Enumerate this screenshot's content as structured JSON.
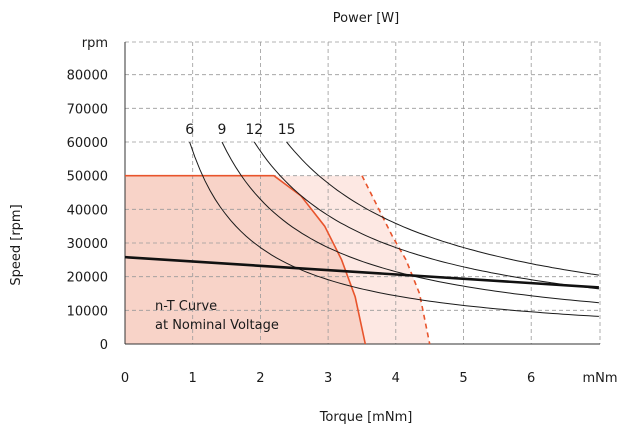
{
  "chart_data": {
    "type": "area",
    "title": "Power [W]",
    "xlabel": "Torque [mNm]",
    "ylabel": "Speed [rpm]",
    "x_unit_label": "mNm",
    "y_unit_label": "rpm",
    "xlim": [
      0,
      7
    ],
    "ylim": [
      0,
      90000
    ],
    "x_ticks": [
      "0",
      "1",
      "2",
      "3",
      "4",
      "5",
      "6"
    ],
    "y_ticks": [
      "0",
      "10000",
      "20000",
      "30000",
      "40000",
      "50000",
      "60000",
      "70000",
      "80000"
    ],
    "grid": true,
    "annotation": [
      "n-T Curve",
      "at Nominal Voltage"
    ],
    "colors": {
      "continuous_fill": "#f8d3c8",
      "intermittent_fill": "#fde8e3",
      "boundary": "#e8542c",
      "power_line": "#1a1a1a",
      "nt_line": "#111111",
      "grid": "#9a9a9a"
    },
    "regions": [
      {
        "role": "continuous",
        "points": [
          [
            0,
            50000
          ],
          [
            2.2,
            50000
          ],
          [
            2.6,
            44000
          ],
          [
            2.95,
            35000
          ],
          [
            3.2,
            25000
          ],
          [
            3.4,
            14000
          ],
          [
            3.55,
            0
          ]
        ]
      },
      {
        "role": "intermittent",
        "points": [
          [
            0,
            50000
          ],
          [
            3.5,
            50000
          ],
          [
            3.75,
            40000
          ],
          [
            3.95,
            32000
          ],
          [
            4.15,
            25000
          ],
          [
            4.35,
            15000
          ],
          [
            4.5,
            0
          ]
        ]
      }
    ],
    "power_curves": [
      {
        "name": "6",
        "watts": 6
      },
      {
        "name": "9",
        "watts": 9
      },
      {
        "name": "12",
        "watts": 12
      },
      {
        "name": "15",
        "watts": 15
      }
    ],
    "nt_line": {
      "x": [
        0,
        7
      ],
      "y": [
        25800,
        16800
      ]
    }
  }
}
